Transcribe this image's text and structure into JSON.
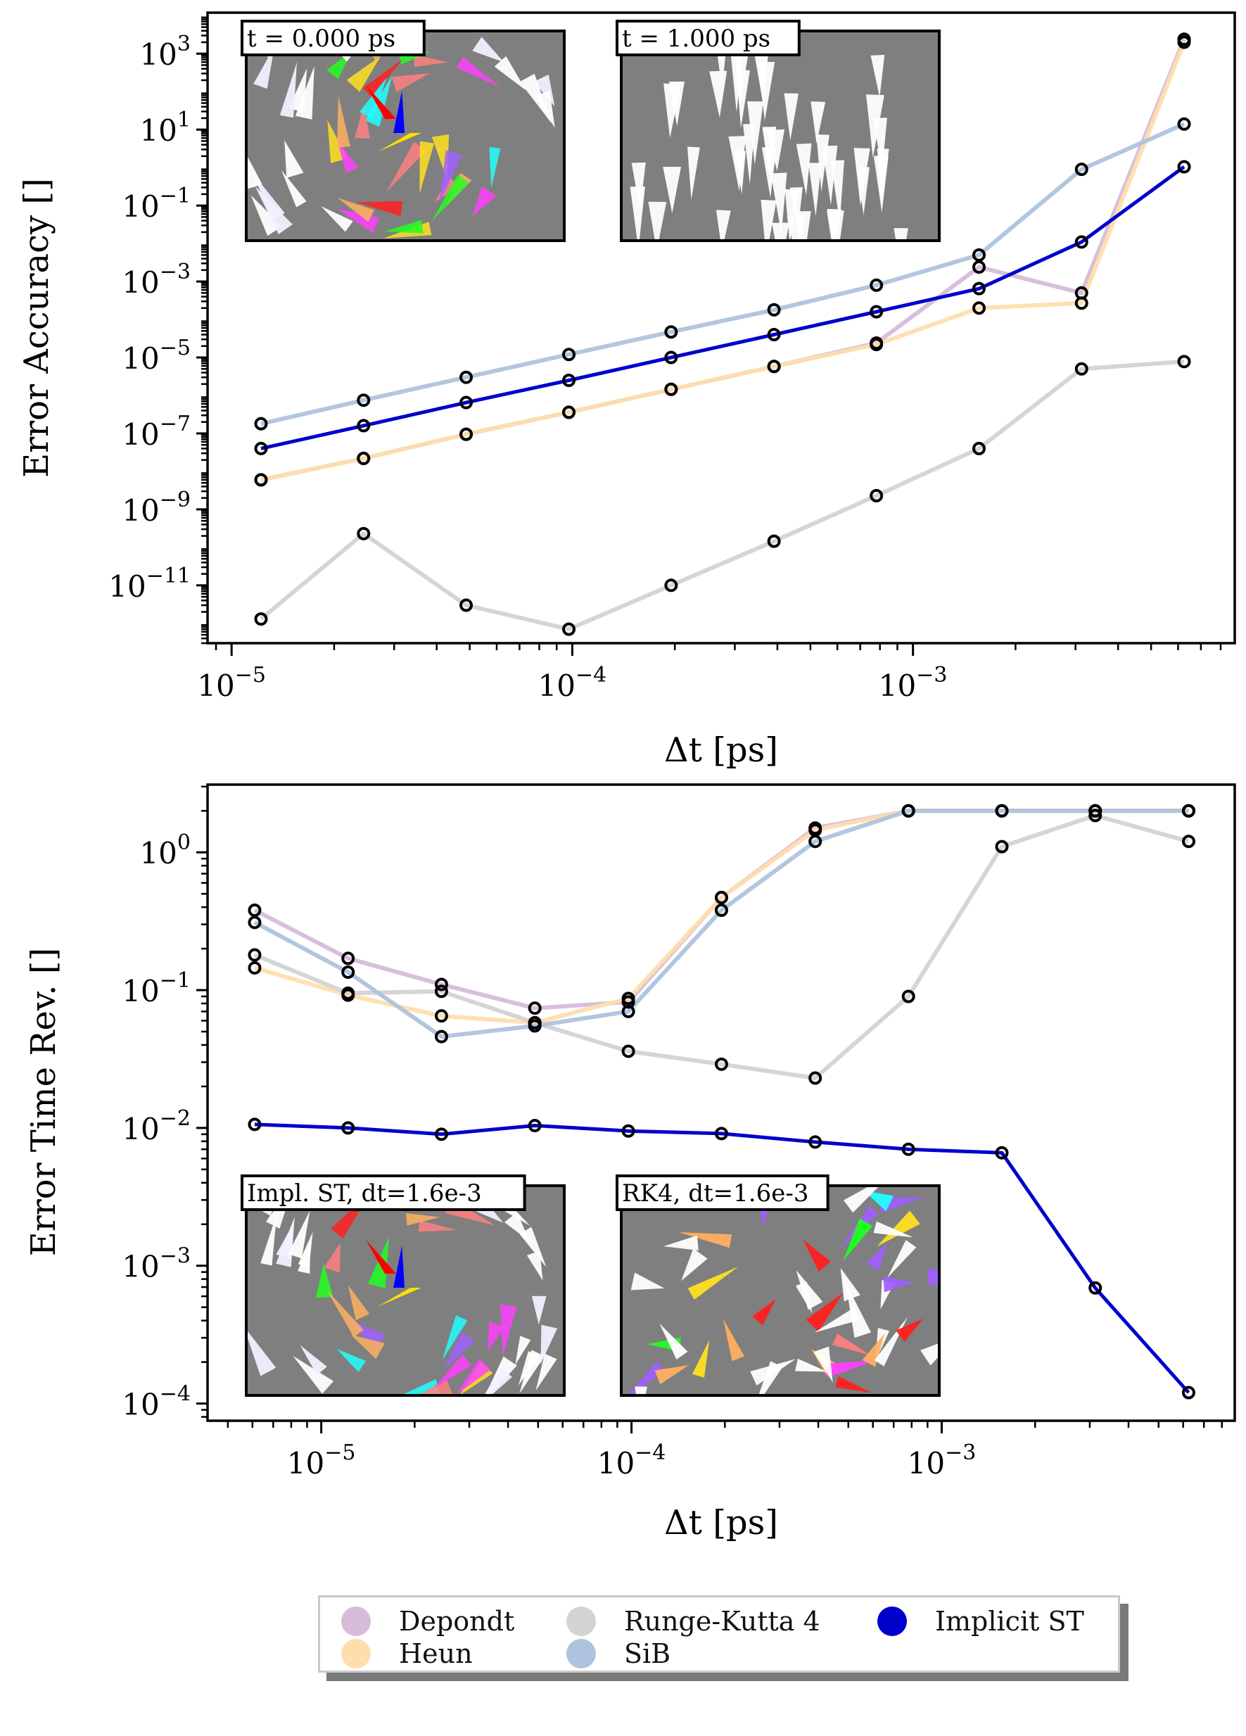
{
  "chart_data": [
    {
      "type": "line",
      "id": "top",
      "xlabel": "Δt [ps]",
      "ylabel": "Error Accuracy []",
      "xscale": "log",
      "yscale": "log",
      "xlim": [
        8.5e-06,
        0.0088
      ],
      "ylim": [
        3e-13,
        12000.0
      ],
      "xticks": [
        {
          "v": 1e-05,
          "label": "10^-5"
        },
        {
          "v": 0.0001,
          "label": "10^-4"
        },
        {
          "v": 0.001,
          "label": "10^-3"
        }
      ],
      "yticks": [
        {
          "v": 1e-11,
          "label": "10^-11"
        },
        {
          "v": 1e-09,
          "label": "10^-9"
        },
        {
          "v": 1e-07,
          "label": "10^-7"
        },
        {
          "v": 1e-05,
          "label": "10^-5"
        },
        {
          "v": 0.001,
          "label": "10^-3"
        },
        {
          "v": 0.1,
          "label": "10^-1"
        },
        {
          "v": 10.0,
          "label": "10^1"
        },
        {
          "v": 1000.0,
          "label": "10^3"
        }
      ],
      "x": [
        1.22e-05,
        2.44e-05,
        4.88e-05,
        9.77e-05,
        0.000195,
        0.000391,
        0.000781,
        0.0015625,
        0.003125,
        0.00625
      ],
      "series": [
        {
          "name": "Depondt",
          "values": [
            6e-09,
            2.2e-08,
            9.5e-08,
            3.6e-07,
            1.45e-06,
            5.8e-06,
            2.4e-05,
            0.0024,
            0.0005,
            2400.0
          ]
        },
        {
          "name": "Heun",
          "values": [
            6e-09,
            2.2e-08,
            9.5e-08,
            3.6e-07,
            1.45e-06,
            5.8e-06,
            2.2e-05,
            0.0002,
            0.00027,
            2000.0
          ]
        },
        {
          "name": "Runge-Kutta 4",
          "values": [
            1.3e-12,
            2.3e-10,
            3e-12,
            7e-13,
            1e-11,
            1.45e-10,
            2.3e-09,
            4e-08,
            5e-06,
            7.8e-06
          ]
        },
        {
          "name": "SiB",
          "values": [
            1.8e-07,
            7.5e-07,
            3e-06,
            1.2e-05,
            4.7e-05,
            0.00018,
            0.0008,
            0.005,
            0.9,
            14
          ]
        },
        {
          "name": "Implicit ST",
          "values": [
            4e-08,
            1.6e-07,
            6.5e-07,
            2.5e-06,
            1e-05,
            4e-05,
            0.00016,
            0.00065,
            0.011,
            1.05
          ]
        }
      ],
      "insets": [
        {
          "label": "t = 0.000 ps",
          "kind": "vortex"
        },
        {
          "label": "t = 1.000 ps",
          "kind": "aligned"
        }
      ]
    },
    {
      "type": "line",
      "id": "bottom",
      "xlabel": "Δt [ps]",
      "ylabel": "Error Time Rev. []",
      "xscale": "log",
      "yscale": "log",
      "xlim": [
        4.3e-06,
        0.0088
      ],
      "ylim": [
        7.5e-05,
        3.1
      ],
      "xticks": [
        {
          "v": 1e-05,
          "label": "10^-5"
        },
        {
          "v": 0.0001,
          "label": "10^-4"
        },
        {
          "v": 0.001,
          "label": "10^-3"
        }
      ],
      "yticks": [
        {
          "v": 0.0001,
          "label": "10^-4"
        },
        {
          "v": 0.001,
          "label": "10^-3"
        },
        {
          "v": 0.01,
          "label": "10^-2"
        },
        {
          "v": 0.1,
          "label": "10^-1"
        },
        {
          "v": 1,
          "label": "10^0"
        }
      ],
      "x": [
        6.1e-06,
        1.22e-05,
        2.44e-05,
        4.88e-05,
        9.77e-05,
        0.000195,
        0.000391,
        0.000781,
        0.0015625,
        0.003125,
        0.00625
      ],
      "series": [
        {
          "name": "Depondt",
          "values": [
            0.38,
            0.17,
            0.11,
            0.074,
            0.082,
            0.47,
            1.5,
            2.0,
            2.0,
            2.0,
            2.0
          ]
        },
        {
          "name": "Heun",
          "values": [
            0.145,
            0.092,
            0.065,
            0.058,
            0.087,
            0.47,
            1.45,
            2.0,
            2.0,
            2.0,
            2.0
          ]
        },
        {
          "name": "Runge-Kutta 4",
          "values": [
            0.18,
            0.095,
            0.098,
            0.058,
            0.036,
            0.029,
            0.023,
            0.09,
            1.1,
            1.85,
            1.2
          ]
        },
        {
          "name": "SiB",
          "values": [
            0.31,
            0.135,
            0.046,
            0.055,
            0.07,
            0.38,
            1.2,
            2.0,
            2.0,
            2.0,
            2.0
          ]
        },
        {
          "name": "Implicit ST",
          "values": [
            0.0106,
            0.01,
            0.009,
            0.0104,
            0.0095,
            0.0091,
            0.0079,
            0.007,
            0.0066,
            0.00069,
            0.00012
          ]
        }
      ],
      "insets": [
        {
          "label": "Impl. ST, dt=1.6e-3",
          "kind": "vortex"
        },
        {
          "label": "RK4, dt=1.6e-3",
          "kind": "chaos"
        }
      ]
    }
  ],
  "legend": [
    {
      "name": "Depondt",
      "color": "#d6bcd9"
    },
    {
      "name": "Runge-Kutta 4",
      "color": "#d3d3d3"
    },
    {
      "name": "Implicit ST",
      "color": "#0000cd"
    },
    {
      "name": "Heun",
      "color": "#ffdead"
    },
    {
      "name": "SiB",
      "color": "#aec3dd"
    }
  ],
  "colors": {
    "Depondt": "#d6bcd9",
    "Heun": "#ffdead",
    "Runge-Kutta 4": "#d3d3d3",
    "SiB": "#aec3dd",
    "Implicit ST": "#0000cd"
  }
}
